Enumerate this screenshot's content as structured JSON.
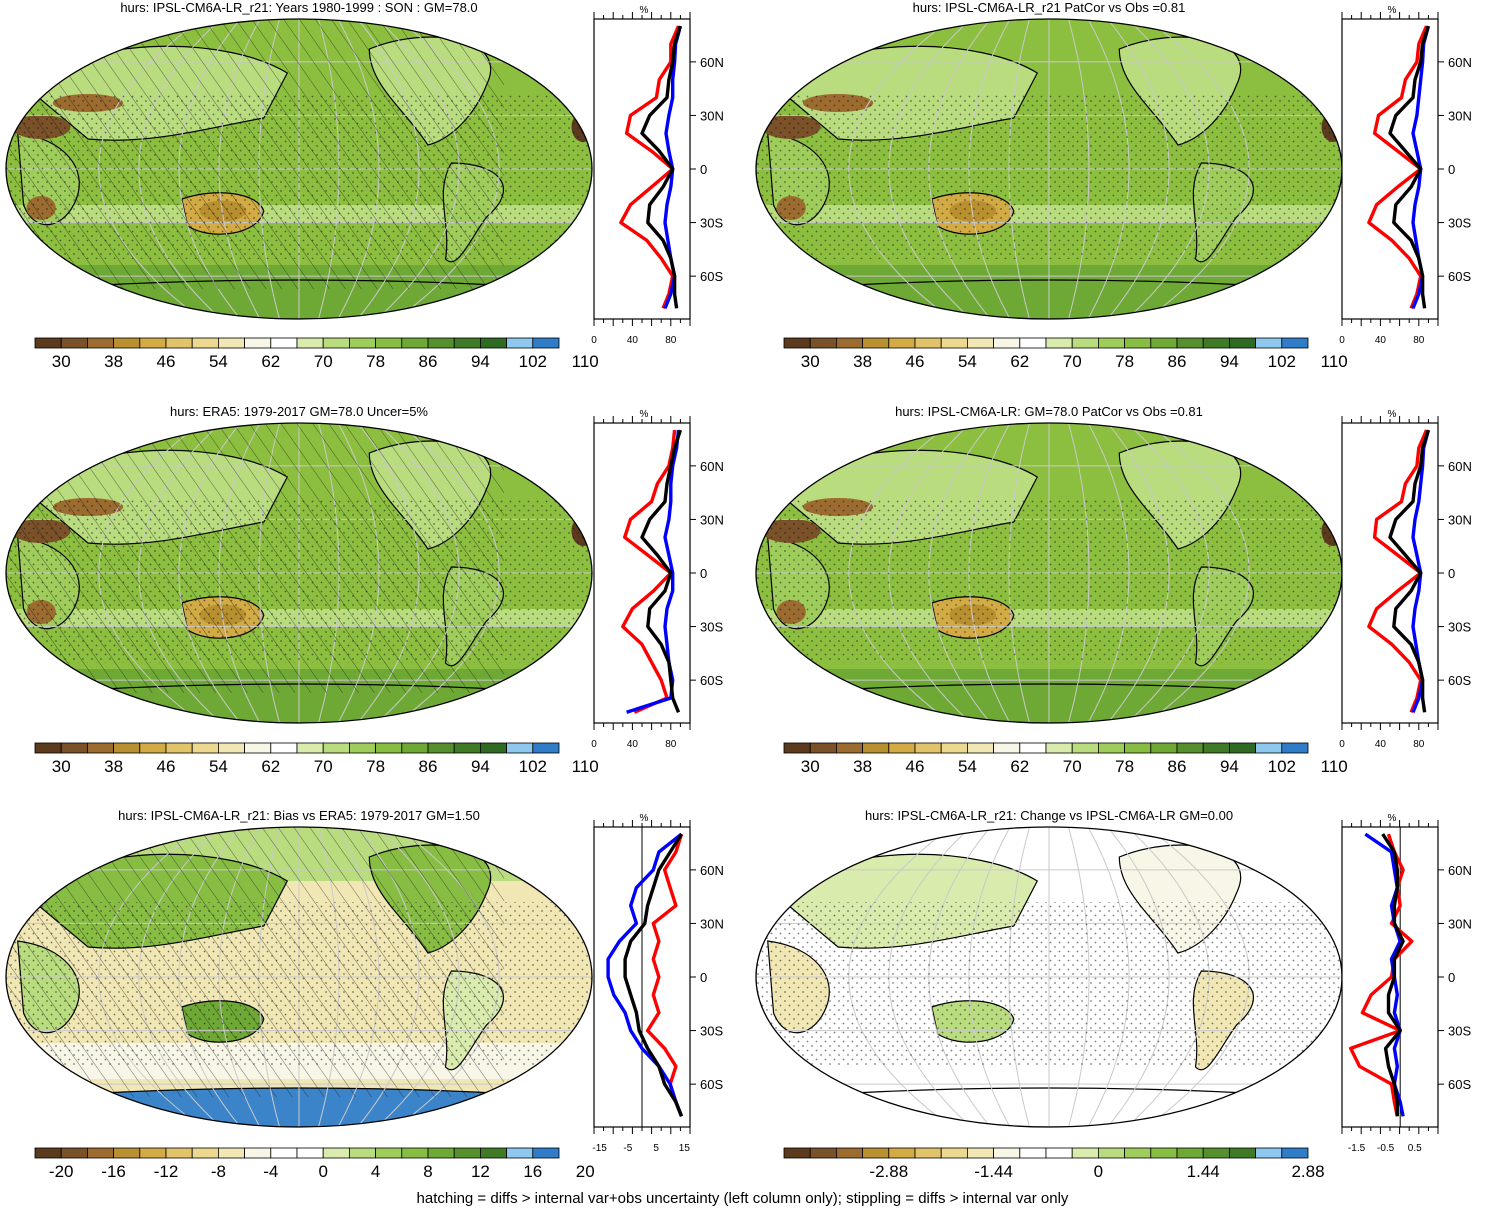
{
  "figure": {
    "footnote": "hatching = diffs > internal var+obs uncertainty (left column only); stippling = diffs > internal var only"
  },
  "colors": {
    "ocean_green": "#8cbf3f",
    "brown_dark": "#6b4420",
    "blue_high": "#3b84c9",
    "profile_red": "#ff0000",
    "profile_blue": "#0000ff",
    "profile_black": "#000000",
    "graticule": "#c9c9c9"
  },
  "palettes": {
    "absolute": [
      "#5c3a1e",
      "#7a5128",
      "#9c6b2f",
      "#b8902f",
      "#d2ab45",
      "#e1c46a",
      "#ecd88f",
      "#f1e7b5",
      "#f8f6e6",
      "#ffffff",
      "#d9ecae",
      "#b9dc7f",
      "#9fcd5b",
      "#88bd44",
      "#6fa935",
      "#568f2d",
      "#3f7a27",
      "#2e6a22",
      "#8ec8ee",
      "#2f7cc9"
    ],
    "diverging": [
      "#5c3a1e",
      "#7a5128",
      "#9c6b2f",
      "#b8902f",
      "#d2ab45",
      "#e1c46a",
      "#ecd88f",
      "#f1e7b5",
      "#f8f6e6",
      "#ffffff",
      "#ffffff",
      "#d9ecae",
      "#b9dc7f",
      "#9fcd5b",
      "#88bd44",
      "#6fa935",
      "#568f2d",
      "#3f7a27",
      "#8ec8ee",
      "#2f7cc9"
    ]
  },
  "panels": [
    {
      "id": "p1",
      "title": "hurs: IPSL-CM6A-LR_r21: Years 1980-1999 : SON : GM=78.0",
      "map_style": "absolute",
      "hatched": true,
      "stippled": true,
      "colorbar": {
        "labels": [
          "30",
          "38",
          "46",
          "54",
          "62",
          "70",
          "78",
          "86",
          "94",
          "102",
          "110"
        ]
      },
      "profile": {
        "unit": "%",
        "xlim": [
          0,
          100
        ],
        "xticks": [
          "0",
          "40",
          "80"
        ],
        "xtick_values": [
          0,
          40,
          80
        ],
        "zero_line": false,
        "lat_labels": [
          "60N",
          "30N",
          "0",
          "30S",
          "60S"
        ]
      }
    },
    {
      "id": "p2",
      "title": "hurs: IPSL-CM6A-LR_r21 PatCor vs Obs =0.81",
      "map_style": "absolute",
      "hatched": false,
      "stippled": true,
      "colorbar": {
        "labels": [
          "30",
          "38",
          "46",
          "54",
          "62",
          "70",
          "78",
          "86",
          "94",
          "102",
          "110"
        ]
      },
      "profile": {
        "unit": "%",
        "xlim": [
          0,
          100
        ],
        "xticks": [
          "0",
          "40",
          "80"
        ],
        "xtick_values": [
          0,
          40,
          80
        ],
        "zero_line": false,
        "lat_labels": [
          "60N",
          "30N",
          "0",
          "30S",
          "60S"
        ]
      }
    },
    {
      "id": "p3",
      "title": "hurs: ERA5: 1979-2017 GM=78.0 Uncer=5%",
      "map_style": "absolute",
      "hatched": true,
      "stippled": true,
      "colorbar": {
        "labels": [
          "30",
          "38",
          "46",
          "54",
          "62",
          "70",
          "78",
          "86",
          "94",
          "102",
          "110"
        ]
      },
      "profile": {
        "unit": "%",
        "xlim": [
          0,
          100
        ],
        "xticks": [
          "0",
          "40",
          "80"
        ],
        "xtick_values": [
          0,
          40,
          80
        ],
        "zero_line": false,
        "lat_labels": [
          "60N",
          "30N",
          "0",
          "30S",
          "60S"
        ]
      }
    },
    {
      "id": "p4",
      "title": "hurs: IPSL-CM6A-LR: GM=78.0 PatCor vs Obs =0.81",
      "map_style": "absolute",
      "hatched": false,
      "stippled": true,
      "colorbar": {
        "labels": [
          "30",
          "38",
          "46",
          "54",
          "62",
          "70",
          "78",
          "86",
          "94",
          "102",
          "110"
        ]
      },
      "profile": {
        "unit": "%",
        "xlim": [
          0,
          100
        ],
        "xticks": [
          "0",
          "40",
          "80"
        ],
        "xtick_values": [
          0,
          40,
          80
        ],
        "zero_line": false,
        "lat_labels": [
          "60N",
          "30N",
          "0",
          "30S",
          "60S"
        ]
      }
    },
    {
      "id": "p5",
      "title": "hurs: IPSL-CM6A-LR_r21: Bias vs ERA5: 1979-2017  GM=1.50",
      "map_style": "bias",
      "hatched": true,
      "stippled": true,
      "colorbar": {
        "labels": [
          "-20",
          "-16",
          "-12",
          "-8",
          "-4",
          "0",
          "4",
          "8",
          "12",
          "16",
          "20"
        ]
      },
      "profile": {
        "unit": "%",
        "xlim": [
          -17,
          17
        ],
        "xticks": [
          "-15",
          "-5",
          "5",
          "15"
        ],
        "xtick_values": [
          -15,
          -5,
          5,
          15
        ],
        "zero_line": true,
        "lat_labels": [
          "60N",
          "30N",
          "0",
          "30S",
          "60S"
        ]
      }
    },
    {
      "id": "p6",
      "title": "hurs: IPSL-CM6A-LR_r21: Change vs IPSL-CM6A-LR GM=0.00",
      "map_style": "change",
      "hatched": false,
      "stippled": true,
      "colorbar": {
        "labels": [
          "-2.88",
          "-1.44",
          "0",
          "1.44",
          "2.88"
        ]
      },
      "profile": {
        "unit": "%",
        "xlim": [
          -2,
          1.3
        ],
        "xticks": [
          "-1.5",
          "-0.5",
          "0.5"
        ],
        "xtick_values": [
          -1.5,
          -0.5,
          0.5
        ],
        "zero_line": true,
        "lat_labels": [
          "60N",
          "30N",
          "0",
          "30S",
          "60S"
        ]
      }
    }
  ],
  "chart_data": [
    {
      "type": "area",
      "id": "p1",
      "title": "hurs: IPSL-CM6A-LR_r21: Years 1980-1999 : SON : GM=78.0",
      "xlabel": "%",
      "x_domain": [
        0,
        100
      ],
      "y_domain_lat": [
        -80,
        80
      ],
      "lat": [
        80,
        70,
        60,
        50,
        40,
        30,
        20,
        10,
        0,
        -10,
        -20,
        -30,
        -40,
        -50,
        -60,
        -70,
        -78
      ],
      "series": [
        {
          "color": "red",
          "values": [
            88,
            80,
            80,
            68,
            65,
            38,
            34,
            60,
            82,
            60,
            38,
            28,
            55,
            70,
            82,
            78,
            72
          ]
        },
        {
          "color": "blue",
          "values": [
            90,
            85,
            84,
            82,
            82,
            78,
            75,
            78,
            82,
            80,
            76,
            74,
            77,
            80,
            84,
            80,
            74
          ]
        },
        {
          "color": "black",
          "values": [
            90,
            84,
            82,
            78,
            76,
            58,
            50,
            68,
            82,
            72,
            58,
            56,
            72,
            80,
            84,
            84,
            86
          ]
        }
      ]
    },
    {
      "type": "area",
      "id": "p2",
      "title": "hurs: IPSL-CM6A-LR_r21 PatCor vs Obs =0.81",
      "xlabel": "%",
      "x_domain": [
        0,
        100
      ],
      "y_domain_lat": [
        -80,
        80
      ],
      "lat": [
        80,
        70,
        60,
        50,
        40,
        30,
        20,
        10,
        0,
        -10,
        -20,
        -30,
        -40,
        -50,
        -60,
        -70,
        -78
      ],
      "series": [
        {
          "color": "red",
          "values": [
            88,
            80,
            78,
            66,
            62,
            38,
            34,
            58,
            82,
            58,
            36,
            28,
            52,
            70,
            82,
            78,
            72
          ]
        },
        {
          "color": "blue",
          "values": [
            90,
            85,
            84,
            82,
            80,
            78,
            74,
            78,
            82,
            80,
            76,
            74,
            77,
            80,
            84,
            80,
            74
          ]
        },
        {
          "color": "black",
          "values": [
            90,
            84,
            82,
            76,
            74,
            56,
            50,
            66,
            82,
            72,
            56,
            54,
            72,
            80,
            84,
            84,
            86
          ]
        }
      ]
    },
    {
      "type": "area",
      "id": "p3",
      "title": "hurs: ERA5: 1979-2017 GM=78.0 Uncer=5%",
      "xlabel": "%",
      "x_domain": [
        0,
        100
      ],
      "y_domain_lat": [
        -80,
        80
      ],
      "lat": [
        80,
        70,
        60,
        50,
        40,
        30,
        20,
        10,
        0,
        -10,
        -20,
        -30,
        -40,
        -50,
        -60,
        -70,
        -78
      ],
      "series": [
        {
          "color": "red",
          "values": [
            84,
            82,
            78,
            66,
            60,
            38,
            32,
            56,
            80,
            62,
            40,
            30,
            50,
            60,
            70,
            76,
            42
          ]
        },
        {
          "color": "blue",
          "values": [
            88,
            86,
            82,
            80,
            80,
            78,
            74,
            78,
            82,
            82,
            76,
            74,
            76,
            78,
            82,
            80,
            34
          ]
        },
        {
          "color": "black",
          "values": [
            90,
            84,
            80,
            76,
            74,
            58,
            50,
            66,
            80,
            74,
            58,
            56,
            70,
            78,
            80,
            82,
            88
          ]
        }
      ]
    },
    {
      "type": "area",
      "id": "p4",
      "title": "hurs: IPSL-CM6A-LR: GM=78.0 PatCor vs Obs =0.81",
      "xlabel": "%",
      "x_domain": [
        0,
        100
      ],
      "y_domain_lat": [
        -80,
        80
      ],
      "lat": [
        80,
        70,
        60,
        50,
        40,
        30,
        20,
        10,
        0,
        -10,
        -20,
        -30,
        -40,
        -50,
        -60,
        -70,
        -78
      ],
      "series": [
        {
          "color": "red",
          "values": [
            88,
            80,
            78,
            66,
            62,
            36,
            34,
            58,
            82,
            58,
            36,
            28,
            52,
            70,
            82,
            78,
            72
          ]
        },
        {
          "color": "blue",
          "values": [
            90,
            85,
            84,
            82,
            80,
            76,
            74,
            78,
            82,
            80,
            76,
            74,
            77,
            80,
            84,
            80,
            74
          ]
        },
        {
          "color": "black",
          "values": [
            90,
            84,
            82,
            76,
            74,
            56,
            50,
            66,
            82,
            72,
            56,
            54,
            72,
            80,
            84,
            84,
            86
          ]
        }
      ]
    },
    {
      "type": "area",
      "id": "p5",
      "title": "hurs: IPSL-CM6A-LR_r21: Bias vs ERA5: 1979-2017  GM=1.50",
      "xlabel": "%",
      "x_domain": [
        -17,
        17
      ],
      "y_domain_lat": [
        -80,
        80
      ],
      "lat": [
        80,
        70,
        60,
        50,
        40,
        30,
        20,
        10,
        0,
        -10,
        -20,
        -30,
        -40,
        -50,
        -60,
        -70,
        -78
      ],
      "series": [
        {
          "color": "red",
          "values": [
            14,
            12,
            8,
            10,
            12,
            4,
            6,
            4,
            6,
            4,
            6,
            2,
            8,
            12,
            10,
            12,
            14
          ]
        },
        {
          "color": "blue",
          "values": [
            14,
            6,
            4,
            -2,
            -4,
            -2,
            -8,
            -12,
            -12,
            -10,
            -6,
            -4,
            0,
            6,
            10,
            12,
            14
          ]
        },
        {
          "color": "black",
          "values": [
            14,
            10,
            6,
            4,
            2,
            1,
            -4,
            -6,
            -6,
            -4,
            -2,
            -1,
            2,
            6,
            8,
            12,
            14
          ]
        }
      ]
    },
    {
      "type": "area",
      "id": "p6",
      "title": "hurs: IPSL-CM6A-LR_r21: Change vs IPSL-CM6A-LR GM=0.00",
      "xlabel": "%",
      "x_domain": [
        -2,
        1.3
      ],
      "y_domain_lat": [
        -80,
        80
      ],
      "lat": [
        80,
        70,
        60,
        50,
        40,
        30,
        20,
        10,
        0,
        -10,
        -20,
        -30,
        -40,
        -50,
        -60,
        -70,
        -78
      ],
      "series": [
        {
          "color": "red",
          "values": [
            -0.4,
            -0.2,
            0.1,
            -0.1,
            0.0,
            -0.3,
            0.4,
            -0.2,
            -0.3,
            -1.0,
            -1.3,
            0.0,
            -1.7,
            -1.4,
            -0.3,
            -0.2,
            -0.1
          ]
        },
        {
          "color": "blue",
          "values": [
            -1.2,
            -0.3,
            -0.2,
            -0.1,
            -0.3,
            -0.2,
            0.0,
            -0.3,
            -0.2,
            -0.1,
            -0.2,
            0.0,
            -0.2,
            -0.1,
            -0.2,
            0.0,
            0.1
          ]
        },
        {
          "color": "black",
          "values": [
            -0.6,
            -0.2,
            -0.1,
            -0.1,
            -0.2,
            -0.2,
            0.1,
            -0.2,
            -0.2,
            -0.4,
            -0.4,
            0.0,
            -0.5,
            -0.4,
            -0.2,
            -0.1,
            -0.1
          ]
        }
      ]
    }
  ]
}
